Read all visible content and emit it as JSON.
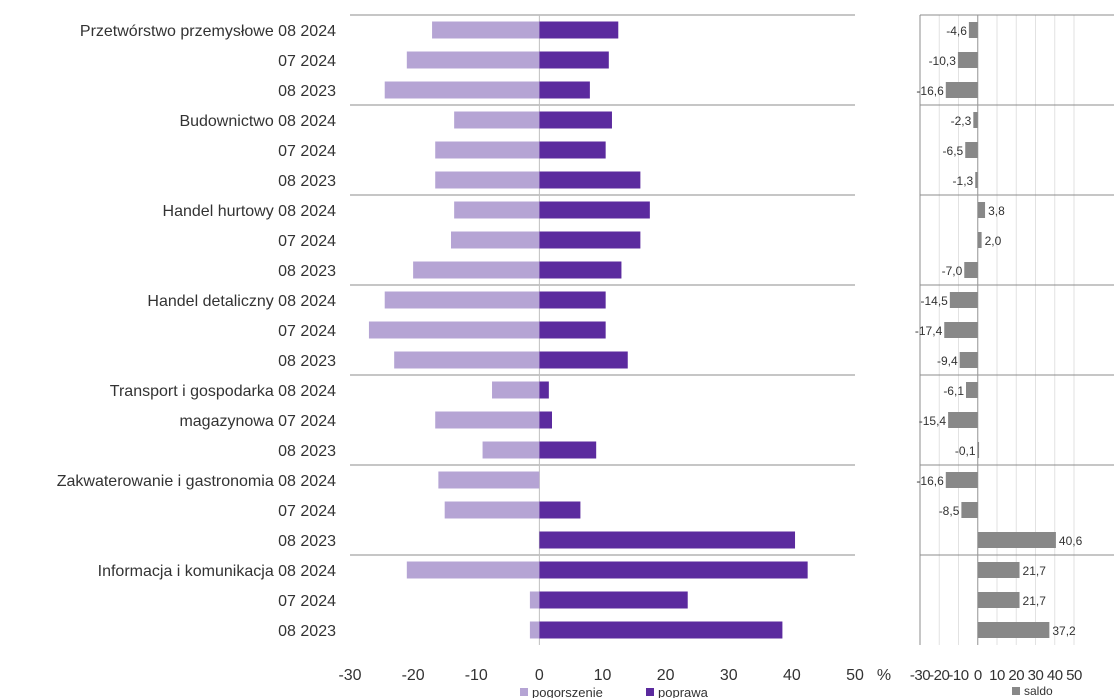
{
  "chart_data": [
    {
      "type": "bar",
      "orientation": "horizontal",
      "sectors": [
        "Przetwórstwo przemysłowe",
        "Budownictwo",
        "Handel hurtowy",
        "Handel detaliczny",
        "Transport i gospodarka magazynowa",
        "Zakwaterowanie i gastronomia",
        "Informacja i komunikacja"
      ],
      "row_labels": [
        "Przetwórstwo przemysłowe 08 2024",
        "07 2024",
        "08 2023",
        "Budownictwo 08 2024",
        "07 2024",
        "08 2023",
        "Handel hurtowy 08 2024",
        "07 2024",
        "08 2023",
        "Handel detaliczny 08 2024",
        "07 2024",
        "08 2023",
        "Transport i gospodarka 08 2024",
        "magazynowa 07 2024",
        "08 2023",
        "Zakwaterowanie i gastronomia 08 2024",
        "07 2024",
        "08 2023",
        "Informacja i komunikacja 08 2024",
        "07 2024",
        "08 2023"
      ],
      "series": [
        {
          "name": "pogorszenie",
          "color": "#b5a4d4",
          "values": [
            -17,
            -21,
            -24.5,
            -13.5,
            -16.5,
            -16.5,
            -13.5,
            -14,
            -20,
            -24.5,
            -27,
            -23,
            -7.5,
            -16.5,
            -9,
            -16,
            -15,
            0,
            -21,
            -1.5,
            -1.5
          ]
        },
        {
          "name": "poprawa",
          "color": "#5b2a9e",
          "values": [
            12.5,
            11,
            8,
            11.5,
            10.5,
            16,
            17.5,
            16,
            13,
            10.5,
            10.5,
            14,
            1.5,
            2,
            9,
            0,
            6.5,
            40.5,
            42.5,
            23.5,
            38.5
          ]
        }
      ],
      "xlim": [
        -30,
        50
      ],
      "xticks": [
        "-30",
        "-20",
        "-10",
        "0",
        "10",
        "20",
        "30",
        "40",
        "50"
      ],
      "xunit": "%",
      "grid": false,
      "legend_position": "bottom"
    },
    {
      "type": "bar",
      "orientation": "horizontal",
      "series": [
        {
          "name": "saldo",
          "color": "#888888",
          "values": [
            -4.6,
            -10.3,
            -16.6,
            -2.3,
            -6.5,
            -1.3,
            3.8,
            2.0,
            -7.0,
            -14.5,
            -17.4,
            -9.4,
            -6.1,
            -15.4,
            -0.1,
            -16.6,
            -8.5,
            40.6,
            21.7,
            21.7,
            37.2
          ]
        }
      ],
      "value_labels": [
        "-4,6",
        "-10,3",
        "-16,6",
        "-2,3",
        "-6,5",
        "-1,3",
        "3,8",
        "2,0",
        "-7,0",
        "-14,5",
        "-17,4",
        "-9,4",
        "-6,1",
        "-15,4",
        "-0,1",
        "-16,6",
        "-8,5",
        "40,6",
        "21,7",
        "21,7",
        "37,2"
      ],
      "xlim": [
        -30,
        50
      ],
      "xticks": [
        "-30",
        "-20",
        "-10",
        "0",
        "10",
        "20",
        "30",
        "40",
        "50"
      ],
      "grid": true,
      "legend_position": "bottom"
    }
  ]
}
